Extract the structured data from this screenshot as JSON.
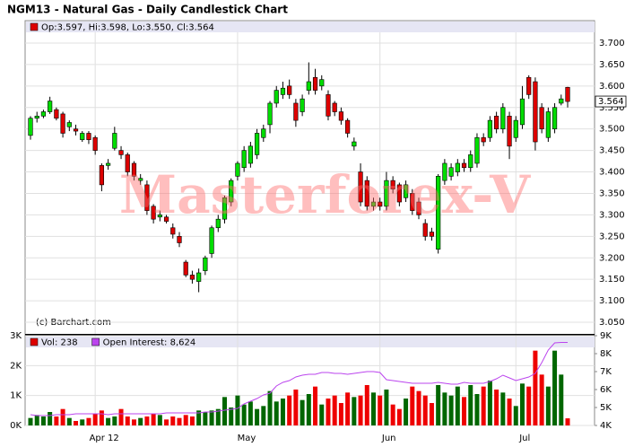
{
  "chart_data": [
    {
      "type": "candlestick",
      "title": "NGM13 - Natural Gas - Daily Candlestick Chart",
      "info": "Op:3.597, Hi:3.598, Lo:3.550, Cl:3.564",
      "last_label": "3.564",
      "source": "(c) Barchart.com",
      "watermark": "Masterforex-V",
      "up_color": "#00dd00",
      "down_color": "#dd0000",
      "open": [
        3.485,
        3.525,
        3.53,
        3.54,
        3.545,
        3.535,
        3.505,
        3.5,
        3.475,
        3.49,
        3.48,
        3.415,
        3.415,
        3.455,
        3.45,
        3.44,
        3.42,
        3.38,
        3.37,
        3.32,
        3.295,
        3.295,
        3.27,
        3.25,
        3.19,
        3.16,
        3.145,
        3.17,
        3.21,
        3.27,
        3.29,
        3.33,
        3.39,
        3.41,
        3.42,
        3.44,
        3.48,
        3.51,
        3.56,
        3.58,
        3.6,
        3.56,
        3.54,
        3.59,
        3.62,
        3.6,
        3.58,
        3.56,
        3.54,
        3.52,
        3.46,
        3.4,
        3.38,
        3.32,
        3.33,
        3.32,
        3.38,
        3.37,
        3.34,
        3.35,
        3.33,
        3.28,
        3.26,
        3.22,
        3.38,
        3.39,
        3.4,
        3.42,
        3.41,
        3.42,
        3.48,
        3.48,
        3.53,
        3.5,
        3.53,
        3.48,
        3.51,
        3.62,
        3.61,
        3.55,
        3.48,
        3.5,
        3.56,
        3.597
      ],
      "high": [
        3.53,
        3.54,
        3.545,
        3.575,
        3.55,
        3.54,
        3.52,
        3.51,
        3.495,
        3.495,
        3.485,
        3.42,
        3.43,
        3.505,
        3.46,
        3.445,
        3.425,
        3.395,
        3.38,
        3.325,
        3.31,
        3.3,
        3.28,
        3.26,
        3.195,
        3.17,
        3.175,
        3.205,
        3.275,
        3.3,
        3.345,
        3.385,
        3.425,
        3.46,
        3.47,
        3.5,
        3.51,
        3.565,
        3.6,
        3.61,
        3.615,
        3.57,
        3.58,
        3.655,
        3.64,
        3.625,
        3.59,
        3.565,
        3.55,
        3.525,
        3.48,
        3.42,
        3.39,
        3.34,
        3.34,
        3.4,
        3.39,
        3.375,
        3.38,
        3.36,
        3.34,
        3.29,
        3.27,
        3.395,
        3.43,
        3.42,
        3.43,
        3.43,
        3.45,
        3.49,
        3.49,
        3.53,
        3.54,
        3.56,
        3.54,
        3.53,
        3.6,
        3.625,
        3.62,
        3.56,
        3.55,
        3.56,
        3.58,
        3.598
      ],
      "low": [
        3.475,
        3.515,
        3.525,
        3.535,
        3.52,
        3.48,
        3.495,
        3.485,
        3.47,
        3.465,
        3.44,
        3.355,
        3.405,
        3.45,
        3.43,
        3.39,
        3.38,
        3.37,
        3.3,
        3.28,
        3.285,
        3.28,
        3.245,
        3.225,
        3.155,
        3.14,
        3.12,
        3.16,
        3.2,
        3.26,
        3.28,
        3.32,
        3.38,
        3.4,
        3.41,
        3.43,
        3.47,
        3.49,
        3.55,
        3.57,
        3.57,
        3.505,
        3.53,
        3.58,
        3.58,
        3.59,
        3.52,
        3.53,
        3.51,
        3.48,
        3.45,
        3.32,
        3.31,
        3.31,
        3.31,
        3.31,
        3.35,
        3.32,
        3.33,
        3.3,
        3.29,
        3.24,
        3.24,
        3.21,
        3.37,
        3.38,
        3.39,
        3.4,
        3.4,
        3.41,
        3.46,
        3.47,
        3.49,
        3.49,
        3.43,
        3.47,
        3.5,
        3.57,
        3.45,
        3.49,
        3.47,
        3.49,
        3.555,
        3.55
      ],
      "close": [
        3.525,
        3.53,
        3.54,
        3.565,
        3.525,
        3.49,
        3.515,
        3.495,
        3.49,
        3.475,
        3.45,
        3.37,
        3.42,
        3.49,
        3.44,
        3.4,
        3.39,
        3.385,
        3.31,
        3.29,
        3.3,
        3.285,
        3.255,
        3.235,
        3.16,
        3.15,
        3.165,
        3.2,
        3.27,
        3.29,
        3.34,
        3.38,
        3.42,
        3.45,
        3.46,
        3.49,
        3.5,
        3.56,
        3.59,
        3.595,
        3.58,
        3.52,
        3.57,
        3.61,
        3.59,
        3.615,
        3.53,
        3.54,
        3.52,
        3.49,
        3.47,
        3.33,
        3.32,
        3.33,
        3.32,
        3.38,
        3.36,
        3.33,
        3.37,
        3.31,
        3.3,
        3.25,
        3.25,
        3.39,
        3.42,
        3.41,
        3.42,
        3.41,
        3.44,
        3.48,
        3.47,
        3.52,
        3.5,
        3.55,
        3.46,
        3.52,
        3.57,
        3.58,
        3.47,
        3.5,
        3.54,
        3.55,
        3.57,
        3.564
      ],
      "ylim": [
        3.025,
        3.725
      ],
      "yticks": [
        {
          "value": 3.05,
          "label": "3.050"
        },
        {
          "value": 3.1,
          "label": "3.100"
        },
        {
          "value": 3.15,
          "label": "3.150"
        },
        {
          "value": 3.2,
          "label": "3.200"
        },
        {
          "value": 3.25,
          "label": "3.250"
        },
        {
          "value": 3.3,
          "label": "3.300"
        },
        {
          "value": 3.35,
          "label": "3.350"
        },
        {
          "value": 3.4,
          "label": "3.400"
        },
        {
          "value": 3.45,
          "label": "3.450"
        },
        {
          "value": 3.5,
          "label": "3.500"
        },
        {
          "value": 3.55,
          "label": "3.550"
        },
        {
          "value": 3.6,
          "label": "3.600"
        },
        {
          "value": 3.65,
          "label": "3.650"
        },
        {
          "value": 3.7,
          "label": "3.700"
        }
      ],
      "grid": true
    },
    {
      "type": "bar",
      "categories": [
        null,
        null,
        null,
        null,
        null,
        null,
        null,
        null,
        null,
        null,
        "Apr 12",
        null,
        null,
        null,
        null,
        null,
        null,
        null,
        null,
        null,
        null,
        null,
        null,
        null,
        null,
        null,
        null,
        null,
        null,
        null,
        null,
        null,
        "May",
        null,
        null,
        null,
        null,
        null,
        null,
        null,
        null,
        null,
        null,
        null,
        null,
        null,
        null,
        null,
        null,
        null,
        null,
        null,
        null,
        null,
        "Jun",
        null,
        null,
        null,
        null,
        null,
        null,
        null,
        null,
        null,
        null,
        null,
        null,
        null,
        null,
        null,
        null,
        null,
        null,
        null,
        null,
        "Jul",
        null,
        null,
        null,
        null,
        null,
        null,
        null,
        null
      ],
      "series": [
        {
          "name": "Vol: 238",
          "up_color": "#006600",
          "down_color": "#ee0000",
          "color": "#dd0000",
          "values": [
            250,
            350,
            300,
            450,
            300,
            550,
            250,
            150,
            200,
            250,
            400,
            500,
            250,
            300,
            550,
            300,
            200,
            250,
            300,
            400,
            350,
            200,
            300,
            250,
            350,
            300,
            500,
            450,
            500,
            550,
            950,
            600,
            1000,
            700,
            800,
            550,
            650,
            1150,
            800,
            900,
            1000,
            1200,
            850,
            1050,
            1300,
            700,
            900,
            1000,
            750,
            1100,
            950,
            1000,
            1350,
            1100,
            1000,
            1200,
            700,
            550,
            900,
            1300,
            1150,
            1000,
            750,
            1350,
            1100,
            1000,
            1300,
            950,
            1350,
            1050,
            1300,
            1500,
            1200,
            1100,
            900,
            650,
            1400,
            1300,
            2500,
            1700,
            1300,
            2500,
            1700,
            238
          ]
        },
        {
          "name": "Open Interest: 8,624",
          "color": "#bb44ee",
          "axis": "y2",
          "values": [
            4600,
            4550,
            4550,
            4550,
            4600,
            4600,
            4600,
            4650,
            4650,
            4650,
            4650,
            4650,
            4600,
            4650,
            4650,
            4650,
            4650,
            4650,
            4650,
            4650,
            4650,
            4700,
            4700,
            4700,
            4700,
            4700,
            4700,
            4750,
            4750,
            4800,
            4850,
            4900,
            4950,
            5200,
            5350,
            5500,
            5700,
            5800,
            6200,
            6400,
            6500,
            6700,
            6800,
            6850,
            6850,
            6950,
            6950,
            6900,
            6900,
            6850,
            6900,
            6950,
            7000,
            7000,
            6950,
            6550,
            6500,
            6450,
            6400,
            6350,
            6350,
            6350,
            6350,
            6400,
            6350,
            6300,
            6300,
            6400,
            6350,
            6350,
            6350,
            6450,
            6600,
            6800,
            6650,
            6500,
            6600,
            6700,
            6900,
            7500,
            8200,
            8600,
            8624,
            8624
          ]
        }
      ],
      "ylim": [
        0,
        3000
      ],
      "yticks": [
        {
          "value": 0,
          "label": "0K"
        },
        {
          "value": 1000,
          "label": "1K"
        },
        {
          "value": 2000,
          "label": "2K"
        },
        {
          "value": 3000,
          "label": "3K"
        }
      ],
      "y2lim": [
        4000,
        9000
      ],
      "y2ticks": [
        {
          "value": 4000,
          "label": "4K"
        },
        {
          "value": 5000,
          "label": "5K"
        },
        {
          "value": 6000,
          "label": "6K"
        },
        {
          "value": 7000,
          "label": "7K"
        },
        {
          "value": 8000,
          "label": "8K"
        },
        {
          "value": 9000,
          "label": "9K"
        }
      ],
      "grid": true
    }
  ]
}
